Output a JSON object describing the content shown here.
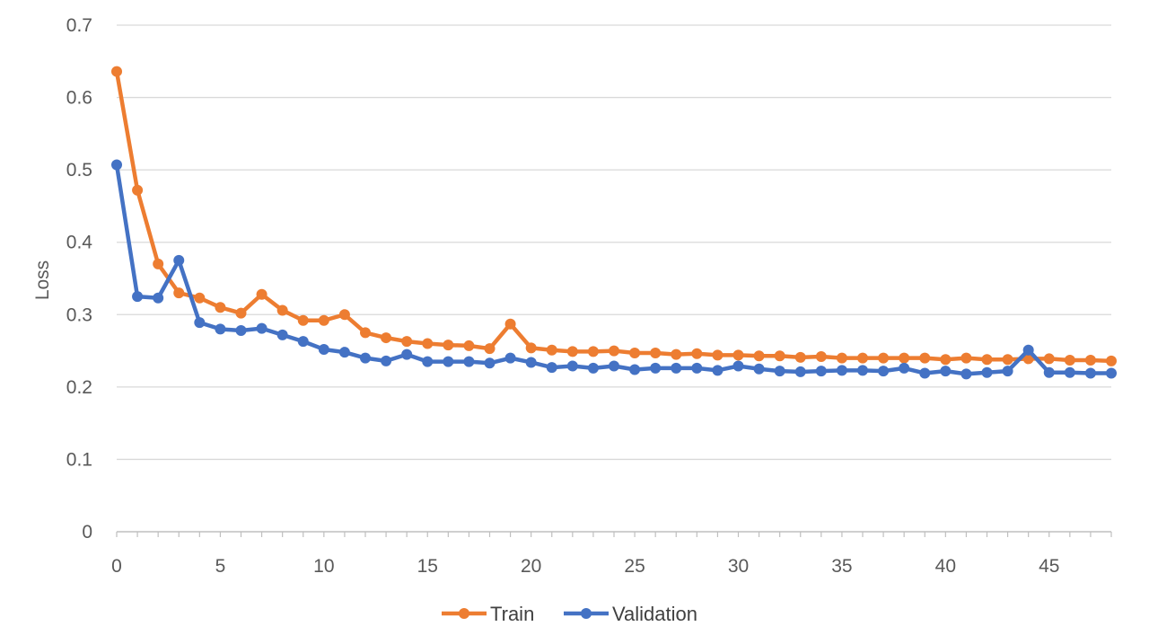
{
  "chart_data": {
    "type": "line",
    "title": "",
    "xlabel": "",
    "ylabel": "Loss",
    "xlim": [
      0,
      48
    ],
    "ylim": [
      0,
      0.7
    ],
    "x_ticks": [
      0,
      5,
      10,
      15,
      20,
      25,
      30,
      35,
      40,
      45
    ],
    "x_tick_labels": [
      "0",
      "5",
      "10",
      "15",
      "20",
      "25",
      "30",
      "35",
      "40",
      "45"
    ],
    "y_ticks": [
      0,
      0.1,
      0.2,
      0.3,
      0.4,
      0.5,
      0.6,
      0.7
    ],
    "y_tick_labels": [
      "0",
      "0.1",
      "0.2",
      "0.3",
      "0.4",
      "0.5",
      "0.6",
      "0.7"
    ],
    "grid": "horizontal",
    "legend_position": "bottom",
    "x": [
      0,
      1,
      2,
      3,
      4,
      5,
      6,
      7,
      8,
      9,
      10,
      11,
      12,
      13,
      14,
      15,
      16,
      17,
      18,
      19,
      20,
      21,
      22,
      23,
      24,
      25,
      26,
      27,
      28,
      29,
      30,
      31,
      32,
      33,
      34,
      35,
      36,
      37,
      38,
      39,
      40,
      41,
      42,
      43,
      44,
      45,
      46,
      47,
      48
    ],
    "series": [
      {
        "name": "Train",
        "color": "#ED7D31",
        "values": [
          0.636,
          0.472,
          0.37,
          0.33,
          0.323,
          0.31,
          0.302,
          0.328,
          0.306,
          0.292,
          0.292,
          0.3,
          0.275,
          0.268,
          0.263,
          0.26,
          0.258,
          0.257,
          0.253,
          0.287,
          0.254,
          0.251,
          0.249,
          0.249,
          0.25,
          0.247,
          0.247,
          0.245,
          0.246,
          0.244,
          0.244,
          0.243,
          0.243,
          0.241,
          0.242,
          0.24,
          0.24,
          0.24,
          0.24,
          0.24,
          0.238,
          0.24,
          0.238,
          0.238,
          0.239,
          0.239,
          0.237,
          0.237,
          0.236
        ]
      },
      {
        "name": "Validation",
        "color": "#4472C4",
        "values": [
          0.507,
          0.325,
          0.323,
          0.375,
          0.289,
          0.28,
          0.278,
          0.281,
          0.272,
          0.263,
          0.252,
          0.248,
          0.24,
          0.236,
          0.245,
          0.235,
          0.235,
          0.235,
          0.233,
          0.24,
          0.234,
          0.227,
          0.229,
          0.226,
          0.229,
          0.224,
          0.226,
          0.226,
          0.226,
          0.223,
          0.229,
          0.225,
          0.222,
          0.221,
          0.222,
          0.223,
          0.223,
          0.222,
          0.226,
          0.219,
          0.222,
          0.218,
          0.22,
          0.222,
          0.251,
          0.22,
          0.22,
          0.219,
          0.219
        ]
      }
    ]
  }
}
